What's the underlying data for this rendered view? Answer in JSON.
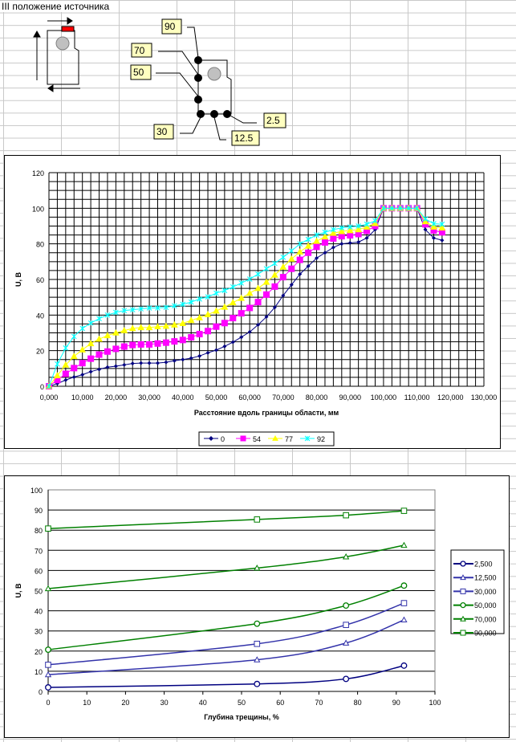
{
  "sheet_title": "III положение источника",
  "diagram_labels": {
    "p90": "90",
    "p70": "70",
    "p50": "50",
    "p30": "30",
    "p12": "12.5",
    "p2": "2.5"
  },
  "colors": {
    "s0": "#000080",
    "s54": "#ff00ff",
    "s77": "#ffff00",
    "s92": "#00ffff",
    "blue": "#000080",
    "blue2": "#3333aa",
    "green": "#008000"
  },
  "chart_data": [
    {
      "type": "line",
      "title": "",
      "xlabel": "Расстояние вдоль границы области, мм",
      "ylabel": "U, В",
      "xlim": [
        0,
        130000
      ],
      "ylim": [
        0,
        120
      ],
      "xticks": [
        "0,000",
        "10,000",
        "20,000",
        "30,000",
        "40,000",
        "50,000",
        "60,000",
        "70,000",
        "80,000",
        "90,000",
        "100,000",
        "110,000",
        "120,000",
        "130,000"
      ],
      "yticks": [
        "0",
        "20",
        "40",
        "60",
        "80",
        "100",
        "120"
      ],
      "legend": "bottom",
      "grid": true,
      "x": [
        0,
        2500,
        5000,
        7500,
        10000,
        12500,
        15000,
        17500,
        20000,
        22500,
        25000,
        27500,
        30000,
        32500,
        35000,
        37500,
        40000,
        42500,
        45000,
        47500,
        50000,
        52500,
        55000,
        57500,
        60000,
        62500,
        65000,
        67500,
        70000,
        72500,
        75000,
        77500,
        80000,
        82500,
        85000,
        87500,
        90000,
        92500,
        95000,
        97500,
        100000,
        102500,
        105000,
        107500,
        110000,
        112500,
        115000,
        117500
      ],
      "series": [
        {
          "name": "0",
          "marker": "diamond",
          "values": [
            0,
            1.5,
            3.5,
            5.2,
            6.5,
            8.2,
            9.5,
            10.7,
            11.3,
            12,
            12.8,
            13,
            13,
            13,
            13.5,
            14.3,
            15,
            15.8,
            17,
            18.8,
            20.3,
            22.4,
            24.8,
            27.6,
            30.5,
            34.5,
            39,
            44.3,
            51,
            57,
            63,
            67.5,
            72,
            75,
            78,
            80,
            80.5,
            81,
            83.3,
            88,
            100,
            100,
            100,
            100,
            100,
            88,
            83.3,
            82
          ]
        },
        {
          "name": "54",
          "marker": "square",
          "values": [
            0,
            3.5,
            7,
            10.2,
            13,
            15.5,
            17.8,
            19.5,
            21,
            22.3,
            23.2,
            23.5,
            23.5,
            24,
            24.5,
            25.2,
            26,
            27.5,
            29.3,
            31,
            33.5,
            35.5,
            38.3,
            41,
            44,
            47.3,
            51.5,
            56,
            61.3,
            66,
            71,
            75,
            78.3,
            80.8,
            83,
            84.3,
            84.8,
            85.5,
            87.3,
            90,
            100,
            100,
            100,
            100,
            100,
            91,
            87.5,
            86.5
          ]
        },
        {
          "name": "77",
          "marker": "triangle",
          "values": [
            0,
            6,
            12,
            16.8,
            20.5,
            24,
            26.5,
            28.5,
            30,
            31.3,
            32.5,
            33,
            33,
            33.5,
            33.8,
            34.5,
            35.3,
            37,
            38.5,
            40.3,
            42.3,
            44.5,
            47,
            49.5,
            52.3,
            55,
            58.5,
            62.5,
            67,
            71.5,
            75.5,
            78.8,
            81.5,
            84,
            86,
            87,
            87.5,
            88,
            89.5,
            91.5,
            100,
            100,
            100,
            100,
            100,
            92.5,
            89.5,
            89
          ]
        },
        {
          "name": "92",
          "marker": "x",
          "values": [
            0,
            12.5,
            21.5,
            28,
            32.5,
            35.5,
            38,
            40,
            41.5,
            42.5,
            43,
            43.5,
            44,
            44,
            44.3,
            45.2,
            46,
            47.3,
            49,
            50.2,
            52.3,
            53.8,
            55.8,
            58,
            60.2,
            63,
            66,
            69,
            72.5,
            76,
            80,
            82.5,
            85,
            86.5,
            88,
            89,
            89.5,
            90,
            91,
            93,
            100,
            100,
            100,
            100,
            100,
            94,
            91.3,
            91
          ]
        }
      ]
    },
    {
      "type": "line",
      "title": "",
      "xlabel": "Глубина трещины, %",
      "ylabel": "U, В",
      "xlim": [
        0,
        100
      ],
      "ylim": [
        0,
        100
      ],
      "xticks": [
        "0",
        "10",
        "20",
        "30",
        "40",
        "50",
        "60",
        "70",
        "80",
        "90",
        "100"
      ],
      "yticks": [
        "0",
        "10",
        "20",
        "30",
        "40",
        "50",
        "60",
        "70",
        "80",
        "90",
        "100"
      ],
      "legend": "right",
      "grid": true,
      "x": [
        0,
        54,
        77,
        92
      ],
      "series": [
        {
          "name": "2,500",
          "marker": "circle",
          "color": "#000080",
          "values": [
            2,
            3.7,
            6.2,
            12.8
          ]
        },
        {
          "name": "12,500",
          "marker": "triangle",
          "color": "#3333aa",
          "values": [
            8.3,
            15.7,
            24,
            35.5
          ]
        },
        {
          "name": "30,000",
          "marker": "square",
          "color": "#3333aa",
          "values": [
            13.2,
            23.6,
            33,
            43.8
          ]
        },
        {
          "name": "50,000",
          "marker": "circle",
          "color": "#008000",
          "values": [
            20.7,
            33.6,
            42.6,
            52.5
          ]
        },
        {
          "name": "70,000",
          "marker": "triangle",
          "color": "#008000",
          "values": [
            51,
            61.2,
            66.8,
            72.5
          ]
        },
        {
          "name": "90,000",
          "marker": "square",
          "color": "#008000",
          "values": [
            80.8,
            85.3,
            87.4,
            89.6
          ]
        }
      ]
    }
  ]
}
